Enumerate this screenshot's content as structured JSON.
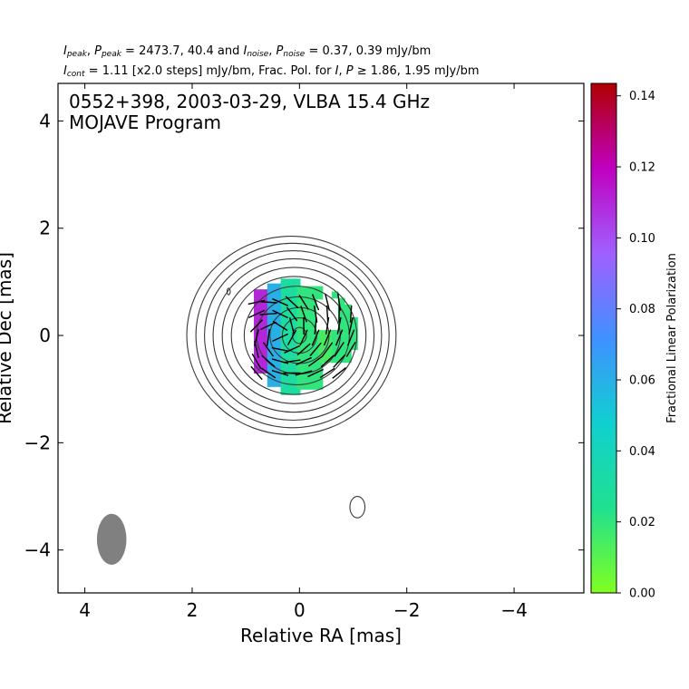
{
  "header": {
    "line1": {
      "a": "I",
      "a_sub": "peak",
      "sep1": ", ",
      "b": "P",
      "b_sub": "peak",
      "text1": " = 2473.7, 40.4 and ",
      "c": "I",
      "c_sub": "noise",
      "sep2": ", ",
      "d": "P",
      "d_sub": "noise",
      "text2": " = 0.37, 0.39 mJy/bm"
    },
    "line2": {
      "a": "I",
      "a_sub": "cont",
      "text1": " = 1.11 [x2.0 steps] mJy/bm, Frac. Pol. for ",
      "b": "I",
      "sep": ", ",
      "c": "P",
      "text2": " ≥ 1.86, 1.95 mJy/bm"
    }
  },
  "plot_label": {
    "line1": "0552+398, 2003-03-29, VLBA 15.4 GHz",
    "line2": "MOJAVE Program"
  },
  "colorbar": {
    "label": "Fractional Linear Polarization",
    "ticks": [
      "0.00",
      "0.02",
      "0.04",
      "0.06",
      "0.08",
      "0.10",
      "0.12",
      "0.14"
    ],
    "range": [
      0.0,
      0.1435
    ],
    "colors": [
      "#80ff20",
      "#20e090",
      "#10d0d0",
      "#4090ff",
      "#a060ff",
      "#c000c0",
      "#b00000"
    ]
  },
  "chart_data": {
    "type": "heatmap",
    "title": "0552+398, 2003-03-29, VLBA 15.4 GHz",
    "subtitle": "MOJAVE Program",
    "xlabel": "Relative RA [mas]",
    "ylabel": "Relative Dec [mas]",
    "xlim": [
      4.5,
      -5.3
    ],
    "ylim": [
      -4.8,
      4.7
    ],
    "x_ticks": [
      4,
      2,
      0,
      -2,
      -4
    ],
    "x_tick_labels": [
      "4",
      "2",
      "0",
      "−2",
      "−4"
    ],
    "y_ticks": [
      4,
      2,
      0,
      -2,
      -4
    ],
    "y_tick_labels": [
      "4",
      "2",
      "0",
      "−2",
      "−4"
    ],
    "contour_levels_mJy": [
      1.11,
      2.22,
      4.44,
      8.88,
      17.76,
      35.52,
      71.04,
      142.08,
      284.16,
      568.32,
      1136.64
    ],
    "contours": [
      {
        "cx": 0.15,
        "cy": 0.0,
        "rx": 1.95,
        "ry": 1.85
      },
      {
        "cx": 0.13,
        "cy": 0.0,
        "rx": 1.8,
        "ry": 1.72
      },
      {
        "cx": 0.12,
        "cy": 0.0,
        "rx": 1.65,
        "ry": 1.58
      },
      {
        "cx": 0.11,
        "cy": 0.0,
        "rx": 1.5,
        "ry": 1.43
      },
      {
        "cx": 0.1,
        "cy": 0.0,
        "rx": 1.34,
        "ry": 1.27
      },
      {
        "cx": 0.1,
        "cy": 0.0,
        "rx": 1.17,
        "ry": 1.1
      },
      {
        "cx": 0.05,
        "cy": 0.0,
        "rx": 0.98,
        "ry": 0.92
      },
      {
        "cx": 0.02,
        "cy": 0.0,
        "rx": 0.78,
        "ry": 0.72
      },
      {
        "cx": 0.0,
        "cy": 0.0,
        "rx": 0.55,
        "ry": 0.52
      },
      {
        "cx": 0.0,
        "cy": 0.0,
        "rx": 0.32,
        "ry": 0.33
      },
      {
        "cx": 0.0,
        "cy": 0.0,
        "rx": 0.13,
        "ry": 0.15
      },
      {
        "cx": -1.08,
        "cy": -3.2,
        "rx": 0.14,
        "ry": 0.2
      },
      {
        "cx": 1.32,
        "cy": 0.82,
        "rx": 0.03,
        "ry": 0.06
      }
    ],
    "polarization_regions": [
      {
        "x0": 0.85,
        "x1": 0.55,
        "y0": -0.7,
        "y1": 0.8,
        "fpol": 0.11
      },
      {
        "x0": 0.6,
        "x1": 0.3,
        "y0": -0.95,
        "y1": 0.95,
        "fpol": 0.06
      },
      {
        "x0": 0.35,
        "x1": 0.0,
        "y0": -1.1,
        "y1": 1.0,
        "fpol": 0.03
      },
      {
        "x0": 0.05,
        "x1": -0.35,
        "y0": -1.0,
        "y1": 0.9,
        "fpol": 0.02
      },
      {
        "x0": -0.35,
        "x1": -0.6,
        "y0": -0.5,
        "y1": 0.4,
        "fpol": 0.015
      },
      {
        "x0": -0.6,
        "x1": -1.1,
        "y0": -0.5,
        "y1": 1.0,
        "fpol": 0.02
      },
      {
        "x0": -1.1,
        "x1": -1.35,
        "y0": -0.4,
        "y1": 0.85,
        "fpol": 0.045
      },
      {
        "x0": -1.35,
        "x1": -1.55,
        "y0": -0.15,
        "y1": 0.7,
        "fpol": 0.08
      }
    ],
    "evpa_grid": {
      "x_range": [
        0.8,
        -1.5
      ],
      "y_range": [
        -0.7,
        0.8
      ],
      "step": 0.22,
      "length": 0.32
    },
    "beam": {
      "x": 3.5,
      "y": -3.8,
      "major_mas": 0.95,
      "minor_mas": 0.55,
      "pa_deg": 0
    }
  }
}
